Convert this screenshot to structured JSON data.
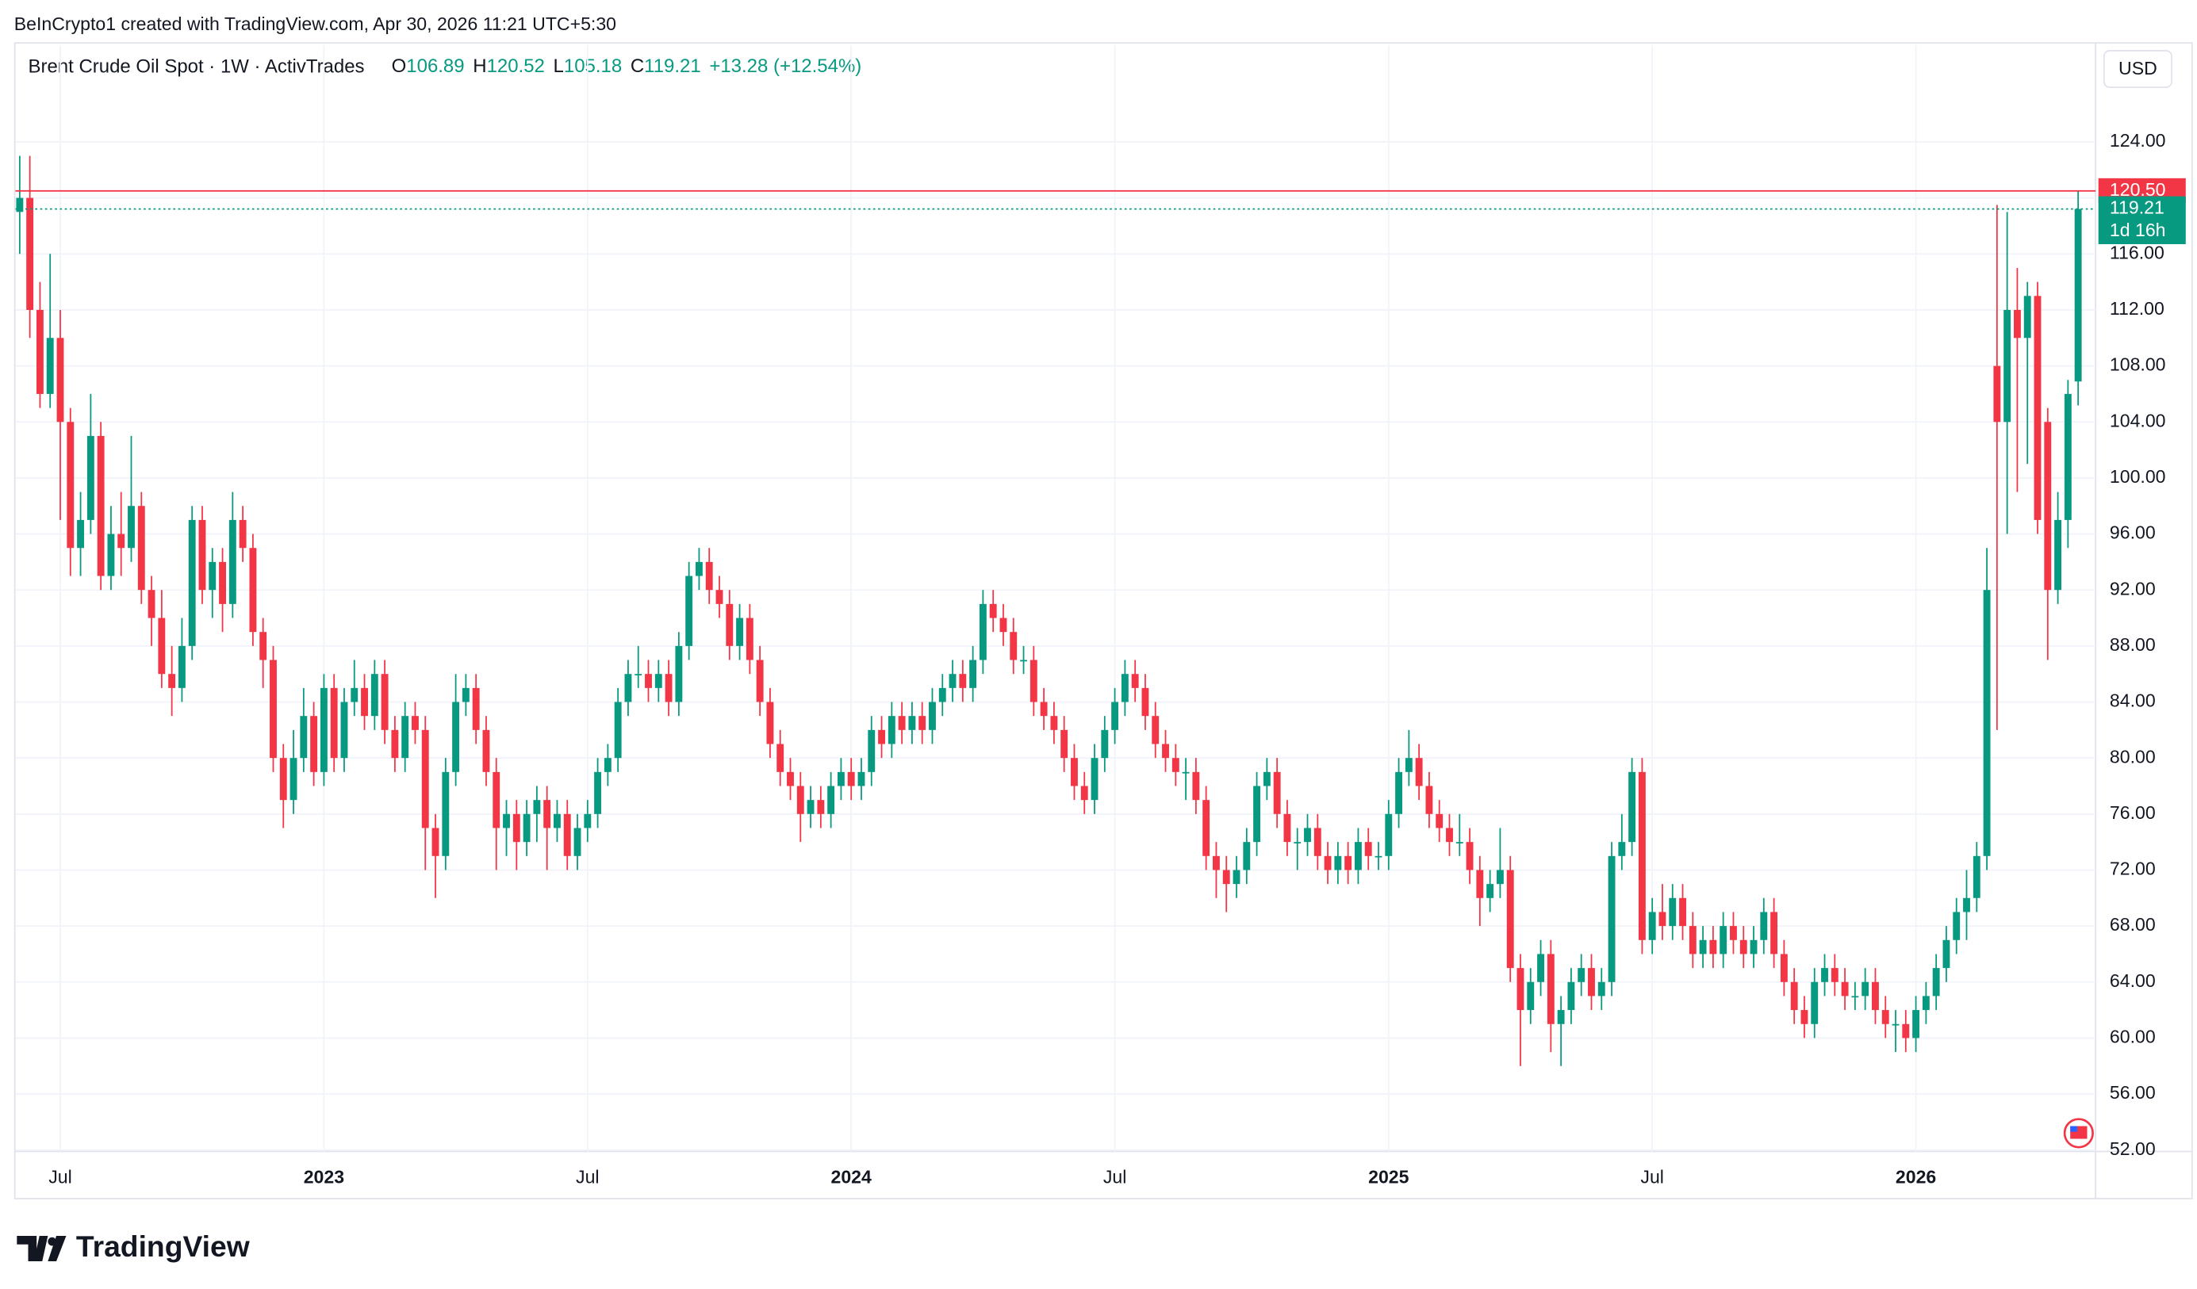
{
  "credit": "BeInCrypto1 created with TradingView.com, Apr 30, 2026 11:21 UTC+5:30",
  "brand": "TradingView",
  "chart_data": {
    "type": "candlestick",
    "title": "Brent Crude Oil Spot · 1W · ActivTrades",
    "ohlc_legend": [
      {
        "key": "O",
        "value": 106.89
      },
      {
        "key": "H",
        "value": 120.52
      },
      {
        "key": "L",
        "value": 105.18
      },
      {
        "key": "C",
        "value": 119.21
      }
    ],
    "change": "+13.28 (+12.54%)",
    "currency": "USD",
    "up_color": "#089981",
    "down_color": "#f23645",
    "ylim": [
      51.9,
      127.9
    ],
    "yticks": [
      {
        "value": 52,
        "label": "52.00"
      },
      {
        "value": 56,
        "label": "56.00"
      },
      {
        "value": 60,
        "label": "60.00"
      },
      {
        "value": 64,
        "label": "64.00"
      },
      {
        "value": 68,
        "label": "68.00"
      },
      {
        "value": 72,
        "label": "72.00"
      },
      {
        "value": 76,
        "label": "76.00"
      },
      {
        "value": 80,
        "label": "80.00"
      },
      {
        "value": 84,
        "label": "84.00"
      },
      {
        "value": 88,
        "label": "88.00"
      },
      {
        "value": 92,
        "label": "92.00"
      },
      {
        "value": 96,
        "label": "96.00"
      },
      {
        "value": 100,
        "label": "100.00"
      },
      {
        "value": 104,
        "label": "104.00"
      },
      {
        "value": 108,
        "label": "108.00"
      },
      {
        "value": 112,
        "label": "112.00"
      },
      {
        "value": 116,
        "label": "116.00"
      },
      {
        "value": 120,
        "label": "120.00"
      },
      {
        "value": 124,
        "label": "124.00"
      }
    ],
    "xticks": [
      {
        "value": 4,
        "label": "Jul"
      },
      {
        "value": 30,
        "label": "2023"
      },
      {
        "value": 56,
        "label": "Jul"
      },
      {
        "value": 82,
        "label": "2024"
      },
      {
        "value": 108,
        "label": "Jul"
      },
      {
        "value": 135,
        "label": "2025"
      },
      {
        "value": 161,
        "label": "Jul"
      },
      {
        "value": 187,
        "label": "2026"
      }
    ],
    "grid": true,
    "levels": [
      {
        "value": 120.5,
        "label": "120.50",
        "color": "#f23645",
        "style": "solid"
      }
    ],
    "last_price": {
      "value": 119.21,
      "label": "119.21",
      "color": "#089981",
      "style": "dotted",
      "countdown": "1d 16h"
    },
    "candles": [
      [
        119,
        123,
        116,
        120
      ],
      [
        120,
        123,
        110,
        112
      ],
      [
        112,
        114,
        105,
        106
      ],
      [
        106,
        116,
        105,
        110
      ],
      [
        110,
        112,
        97,
        104
      ],
      [
        104,
        105,
        93,
        95
      ],
      [
        95,
        99,
        93,
        97
      ],
      [
        97,
        106,
        96,
        103
      ],
      [
        103,
        104,
        92,
        93
      ],
      [
        93,
        98,
        92,
        96
      ],
      [
        96,
        99,
        93,
        95
      ],
      [
        95,
        103,
        94,
        98
      ],
      [
        98,
        99,
        91,
        92
      ],
      [
        92,
        93,
        88,
        90
      ],
      [
        90,
        92,
        85,
        86
      ],
      [
        86,
        88,
        83,
        85
      ],
      [
        85,
        90,
        84,
        88
      ],
      [
        88,
        98,
        87,
        97
      ],
      [
        97,
        98,
        91,
        92
      ],
      [
        92,
        95,
        90,
        94
      ],
      [
        94,
        95,
        89,
        91
      ],
      [
        91,
        99,
        90,
        97
      ],
      [
        97,
        98,
        94,
        95
      ],
      [
        95,
        96,
        88,
        89
      ],
      [
        89,
        90,
        85,
        87
      ],
      [
        87,
        88,
        79,
        80
      ],
      [
        80,
        81,
        75,
        77
      ],
      [
        77,
        82,
        76,
        80
      ],
      [
        80,
        85,
        79,
        83
      ],
      [
        83,
        84,
        78,
        79
      ],
      [
        79,
        86,
        78,
        85
      ],
      [
        85,
        86,
        79,
        80
      ],
      [
        80,
        85,
        79,
        84
      ],
      [
        84,
        87,
        83,
        85
      ],
      [
        85,
        86,
        82,
        83
      ],
      [
        83,
        87,
        82,
        86
      ],
      [
        86,
        87,
        81,
        82
      ],
      [
        82,
        83,
        79,
        80
      ],
      [
        80,
        84,
        79,
        83
      ],
      [
        83,
        84,
        81,
        82
      ],
      [
        82,
        83,
        72,
        75
      ],
      [
        75,
        76,
        70,
        73
      ],
      [
        73,
        80,
        72,
        79
      ],
      [
        79,
        86,
        78,
        84
      ],
      [
        84,
        86,
        83,
        85
      ],
      [
        85,
        86,
        81,
        82
      ],
      [
        82,
        83,
        78,
        79
      ],
      [
        79,
        80,
        72,
        75
      ],
      [
        75,
        77,
        73,
        76
      ],
      [
        76,
        77,
        72,
        74
      ],
      [
        74,
        77,
        73,
        76
      ],
      [
        76,
        78,
        74,
        77
      ],
      [
        77,
        78,
        72,
        75
      ],
      [
        75,
        77,
        74,
        76
      ],
      [
        76,
        77,
        72,
        73
      ],
      [
        73,
        76,
        72,
        75
      ],
      [
        75,
        77,
        74,
        76
      ],
      [
        76,
        80,
        75,
        79
      ],
      [
        79,
        81,
        78,
        80
      ],
      [
        80,
        85,
        79,
        84
      ],
      [
        84,
        87,
        83,
        86
      ],
      [
        86,
        88,
        85,
        86
      ],
      [
        86,
        87,
        84,
        85
      ],
      [
        85,
        87,
        84,
        86
      ],
      [
        86,
        87,
        83,
        84
      ],
      [
        84,
        89,
        83,
        88
      ],
      [
        88,
        94,
        87,
        93
      ],
      [
        93,
        95,
        92,
        94
      ],
      [
        94,
        95,
        91,
        92
      ],
      [
        92,
        93,
        90,
        91
      ],
      [
        91,
        92,
        87,
        88
      ],
      [
        88,
        91,
        87,
        90
      ],
      [
        90,
        91,
        86,
        87
      ],
      [
        87,
        88,
        83,
        84
      ],
      [
        84,
        85,
        80,
        81
      ],
      [
        81,
        82,
        78,
        79
      ],
      [
        79,
        80,
        77,
        78
      ],
      [
        78,
        79,
        74,
        76
      ],
      [
        76,
        78,
        75,
        77
      ],
      [
        77,
        78,
        75,
        76
      ],
      [
        76,
        79,
        75,
        78
      ],
      [
        78,
        80,
        77,
        79
      ],
      [
        79,
        80,
        77,
        78
      ],
      [
        78,
        80,
        77,
        79
      ],
      [
        79,
        83,
        78,
        82
      ],
      [
        82,
        83,
        80,
        81
      ],
      [
        81,
        84,
        80,
        83
      ],
      [
        83,
        84,
        81,
        82
      ],
      [
        82,
        84,
        81,
        83
      ],
      [
        83,
        84,
        81,
        82
      ],
      [
        82,
        85,
        81,
        84
      ],
      [
        84,
        86,
        83,
        85
      ],
      [
        85,
        87,
        84,
        86
      ],
      [
        86,
        87,
        84,
        85
      ],
      [
        85,
        88,
        84,
        87
      ],
      [
        87,
        92,
        86,
        91
      ],
      [
        91,
        92,
        89,
        90
      ],
      [
        90,
        91,
        88,
        89
      ],
      [
        89,
        90,
        86,
        87
      ],
      [
        87,
        88,
        86,
        87
      ],
      [
        87,
        88,
        83,
        84
      ],
      [
        84,
        85,
        82,
        83
      ],
      [
        83,
        84,
        81,
        82
      ],
      [
        82,
        83,
        79,
        80
      ],
      [
        80,
        81,
        77,
        78
      ],
      [
        78,
        79,
        76,
        77
      ],
      [
        77,
        81,
        76,
        80
      ],
      [
        80,
        83,
        79,
        82
      ],
      [
        82,
        85,
        81,
        84
      ],
      [
        84,
        87,
        83,
        86
      ],
      [
        86,
        87,
        84,
        85
      ],
      [
        85,
        86,
        82,
        83
      ],
      [
        83,
        84,
        80,
        81
      ],
      [
        81,
        82,
        79,
        80
      ],
      [
        80,
        81,
        78,
        79
      ],
      [
        79,
        80,
        77,
        79
      ],
      [
        79,
        80,
        76,
        77
      ],
      [
        77,
        78,
        72,
        73
      ],
      [
        73,
        74,
        70,
        72
      ],
      [
        72,
        73,
        69,
        71
      ],
      [
        71,
        73,
        70,
        72
      ],
      [
        72,
        75,
        71,
        74
      ],
      [
        74,
        79,
        73,
        78
      ],
      [
        78,
        80,
        77,
        79
      ],
      [
        79,
        80,
        75,
        76
      ],
      [
        76,
        77,
        73,
        74
      ],
      [
        74,
        75,
        72,
        74
      ],
      [
        74,
        76,
        73,
        75
      ],
      [
        75,
        76,
        72,
        73
      ],
      [
        73,
        74,
        71,
        72
      ],
      [
        72,
        74,
        71,
        73
      ],
      [
        73,
        74,
        71,
        72
      ],
      [
        72,
        75,
        71,
        74
      ],
      [
        74,
        75,
        72,
        73
      ],
      [
        73,
        74,
        72,
        73
      ],
      [
        73,
        77,
        72,
        76
      ],
      [
        76,
        80,
        75,
        79
      ],
      [
        79,
        82,
        78,
        80
      ],
      [
        80,
        81,
        77,
        78
      ],
      [
        78,
        79,
        75,
        76
      ],
      [
        76,
        77,
        74,
        75
      ],
      [
        75,
        76,
        73,
        74
      ],
      [
        74,
        76,
        73,
        74
      ],
      [
        74,
        75,
        71,
        72
      ],
      [
        72,
        73,
        68,
        70
      ],
      [
        70,
        72,
        69,
        71
      ],
      [
        71,
        75,
        70,
        72
      ],
      [
        72,
        73,
        64,
        65
      ],
      [
        65,
        66,
        58,
        62
      ],
      [
        62,
        65,
        61,
        64
      ],
      [
        64,
        67,
        63,
        66
      ],
      [
        66,
        67,
        59,
        61
      ],
      [
        61,
        63,
        58,
        62
      ],
      [
        62,
        65,
        61,
        64
      ],
      [
        64,
        66,
        63,
        65
      ],
      [
        65,
        66,
        62,
        63
      ],
      [
        63,
        65,
        62,
        64
      ],
      [
        64,
        74,
        63,
        73
      ],
      [
        73,
        76,
        72,
        74
      ],
      [
        74,
        80,
        73,
        79
      ],
      [
        79,
        80,
        66,
        67
      ],
      [
        67,
        70,
        66,
        69
      ],
      [
        69,
        71,
        67,
        68
      ],
      [
        68,
        71,
        67,
        70
      ],
      [
        70,
        71,
        67,
        68
      ],
      [
        68,
        69,
        65,
        66
      ],
      [
        66,
        68,
        65,
        67
      ],
      [
        67,
        68,
        65,
        66
      ],
      [
        66,
        69,
        65,
        68
      ],
      [
        68,
        69,
        66,
        67
      ],
      [
        67,
        68,
        65,
        66
      ],
      [
        66,
        68,
        65,
        67
      ],
      [
        67,
        70,
        66,
        69
      ],
      [
        69,
        70,
        65,
        66
      ],
      [
        66,
        67,
        63,
        64
      ],
      [
        64,
        65,
        61,
        62
      ],
      [
        62,
        63,
        60,
        61
      ],
      [
        61,
        65,
        60,
        64
      ],
      [
        64,
        66,
        63,
        65
      ],
      [
        65,
        66,
        63,
        64
      ],
      [
        64,
        65,
        62,
        63
      ],
      [
        63,
        64,
        62,
        63
      ],
      [
        63,
        65,
        62,
        64
      ],
      [
        64,
        65,
        61,
        62
      ],
      [
        62,
        63,
        60,
        61
      ],
      [
        61,
        62,
        59,
        61
      ],
      [
        61,
        62,
        59,
        60
      ],
      [
        60,
        63,
        59,
        62
      ],
      [
        62,
        64,
        61,
        63
      ],
      [
        63,
        66,
        62,
        65
      ],
      [
        65,
        68,
        64,
        67
      ],
      [
        67,
        70,
        66,
        69
      ],
      [
        69,
        72,
        67,
        70
      ],
      [
        70,
        74,
        69,
        73
      ],
      [
        73,
        95,
        72,
        92
      ],
      [
        108,
        119.5,
        82,
        104
      ],
      [
        104,
        119,
        96,
        112
      ],
      [
        112,
        115,
        99,
        110
      ],
      [
        110,
        114,
        101,
        113
      ],
      [
        113,
        114,
        96,
        97
      ],
      [
        104,
        105,
        87,
        92
      ],
      [
        92,
        99,
        91,
        97
      ],
      [
        97,
        107,
        95,
        106
      ],
      [
        106.89,
        120.52,
        105.18,
        119.21
      ]
    ]
  }
}
